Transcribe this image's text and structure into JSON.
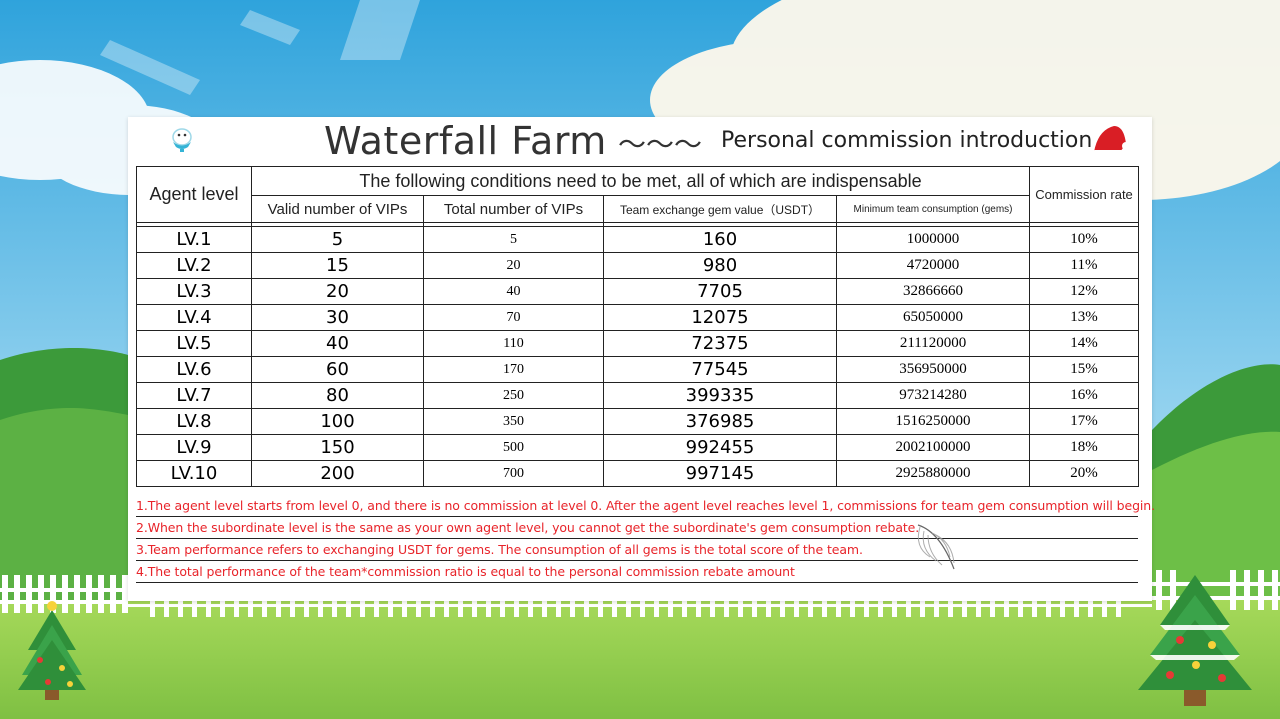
{
  "colors": {
    "sky_top": "#3aa8de",
    "sky_bottom": "#bde6f5",
    "grass": "#8dcc4a",
    "hill": "#3c9a3a",
    "note_red": "#e8242a",
    "santa_hat": "#d91e25"
  },
  "icons": [
    "farm-logo-icon",
    "santa-hat-icon",
    "christmas-tree-icon",
    "feather-icon"
  ],
  "title": {
    "main": "Waterfall Farm",
    "tilde": "～～～",
    "sub": "Personal commission introduction"
  },
  "table": {
    "header": {
      "agent_level": "Agent level",
      "conditions": "The following conditions need to be met, all of which are indispensable",
      "commission_rate": "Commission rate",
      "sub": [
        "Valid number of VIPs",
        "Total number of VIPs",
        "Team exchange gem value（USDT）",
        "Minimum team consumption (gems)"
      ]
    },
    "rows": [
      {
        "level": "LV.1",
        "valid_vips": "5",
        "total_vips": "5",
        "gem_value": "160",
        "min_consumption": "1000000",
        "rate": "10%"
      },
      {
        "level": "LV.2",
        "valid_vips": "15",
        "total_vips": "20",
        "gem_value": "980",
        "min_consumption": "4720000",
        "rate": "11%"
      },
      {
        "level": "LV.3",
        "valid_vips": "20",
        "total_vips": "40",
        "gem_value": "7705",
        "min_consumption": "32866660",
        "rate": "12%"
      },
      {
        "level": "LV.4",
        "valid_vips": "30",
        "total_vips": "70",
        "gem_value": "12075",
        "min_consumption": "65050000",
        "rate": "13%"
      },
      {
        "level": "LV.5",
        "valid_vips": "40",
        "total_vips": "110",
        "gem_value": "72375",
        "min_consumption": "211120000",
        "rate": "14%"
      },
      {
        "level": "LV.6",
        "valid_vips": "60",
        "total_vips": "170",
        "gem_value": "77545",
        "min_consumption": "356950000",
        "rate": "15%"
      },
      {
        "level": "LV.7",
        "valid_vips": "80",
        "total_vips": "250",
        "gem_value": "399335",
        "min_consumption": "973214280",
        "rate": "16%"
      },
      {
        "level": "LV.8",
        "valid_vips": "100",
        "total_vips": "350",
        "gem_value": "376985",
        "min_consumption": "1516250000",
        "rate": "17%"
      },
      {
        "level": "LV.9",
        "valid_vips": "150",
        "total_vips": "500",
        "gem_value": "992455",
        "min_consumption": "2002100000",
        "rate": "18%"
      },
      {
        "level": "LV.10",
        "valid_vips": "200",
        "total_vips": "700",
        "gem_value": "997145",
        "min_consumption": "2925880000",
        "rate": "20%"
      }
    ]
  },
  "notes": [
    "1.The agent level starts from level 0, and there is no commission at level 0. After the agent level reaches level 1, commissions for team gem consumption will begin.",
    "2.When the subordinate level is the same as your own agent level, you cannot get the subordinate's gem consumption rebate.",
    "3.Team performance refers to exchanging USDT for gems. The consumption of all gems is the total score of the team.",
    "4.The total performance of the team*commission ratio is equal to the personal commission rebate amount"
  ]
}
